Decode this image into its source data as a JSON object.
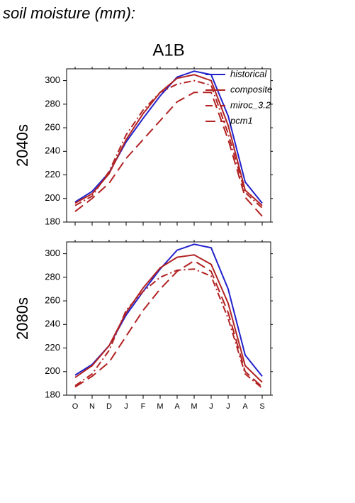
{
  "header": {
    "title": "soil moisture (mm):",
    "subtitle": "A1B"
  },
  "chart_data": [
    {
      "type": "line",
      "ylabel": "2040s",
      "ylim": [
        180,
        310
      ],
      "yticks": [
        180,
        200,
        220,
        240,
        260,
        280,
        300
      ],
      "legend": "upper right",
      "series": [
        {
          "name": "historical",
          "color": "#2222cc",
          "dash": "solid",
          "values": [
            197,
            206,
            222,
            248,
            268,
            287,
            303,
            308,
            305,
            270,
            214,
            196
          ]
        },
        {
          "name": "composite",
          "color": "#b22222",
          "dash": "solid",
          "values": [
            196,
            204,
            221,
            250,
            272,
            290,
            302,
            305,
            300,
            262,
            207,
            194
          ]
        },
        {
          "name": "miroc_3.2",
          "color": "#b22222",
          "dash": "dashdot",
          "values": [
            194,
            202,
            223,
            254,
            275,
            290,
            297,
            300,
            296,
            255,
            205,
            192
          ]
        },
        {
          "name": "pcm1",
          "color": "#b22222",
          "dash": "longdash",
          "values": [
            189,
            200,
            213,
            234,
            250,
            266,
            282,
            290,
            290,
            250,
            201,
            185
          ]
        }
      ]
    },
    {
      "type": "line",
      "ylabel": "2080s",
      "ylim": [
        180,
        310
      ],
      "yticks": [
        180,
        200,
        220,
        240,
        260,
        280,
        300
      ],
      "categories": [
        "O",
        "N",
        "D",
        "J",
        "F",
        "M",
        "A",
        "M",
        "J",
        "J",
        "A",
        "S"
      ],
      "series": [
        {
          "color": "#2222cc",
          "dash": "solid",
          "values": [
            197,
            206,
            222,
            248,
            268,
            287,
            303,
            308,
            305,
            270,
            214,
            196
          ]
        },
        {
          "color": "#b22222",
          "dash": "solid",
          "values": [
            195,
            205,
            222,
            250,
            271,
            288,
            297,
            299,
            291,
            258,
            205,
            191
          ]
        },
        {
          "color": "#b22222",
          "dash": "dashdot",
          "values": [
            188,
            198,
            218,
            252,
            268,
            280,
            286,
            287,
            281,
            245,
            198,
            186
          ]
        },
        {
          "color": "#b22222",
          "dash": "longdash",
          "values": [
            187,
            196,
            208,
            230,
            252,
            270,
            285,
            294,
            285,
            250,
            200,
            187
          ]
        }
      ]
    }
  ]
}
